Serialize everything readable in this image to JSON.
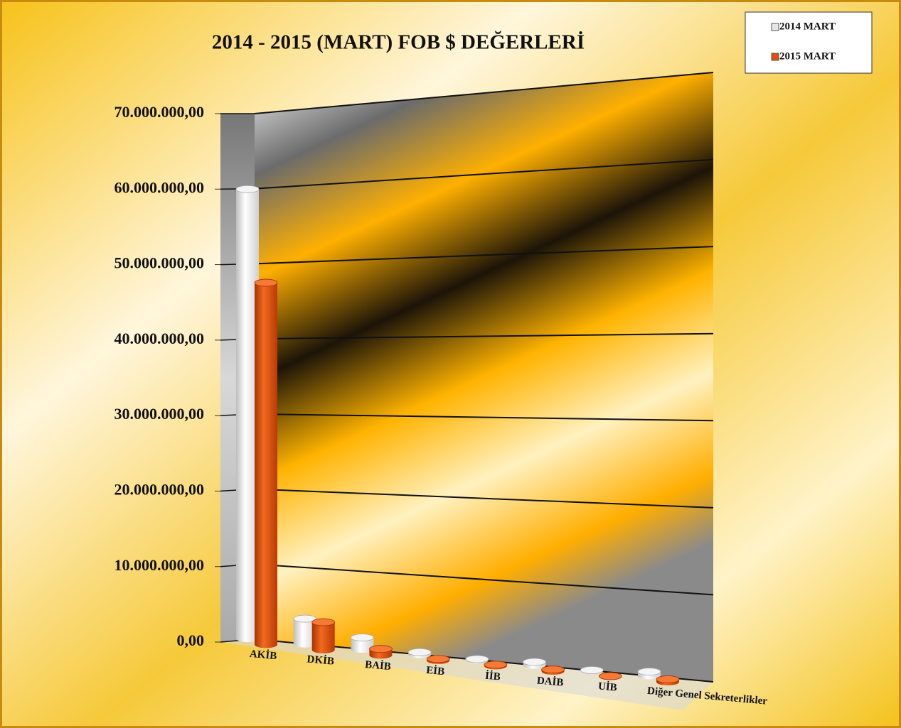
{
  "chart_data": {
    "type": "bar3d",
    "title": "2014 - 2015 (MART) FOB $ DEĞERLERİ",
    "categories": [
      "AKİB",
      "DKİB",
      "BAİB",
      "EİB",
      "İİB",
      "DAİB",
      "UİB",
      "Diğer Genel Sekreterlikler"
    ],
    "series": [
      {
        "name": "2014 MART",
        "color": "#e6e6e6",
        "values": [
          60000000,
          3300000,
          1500000,
          300000,
          100000,
          400000,
          50000,
          500000
        ]
      },
      {
        "name": "2015 MART",
        "color": "#e0500f",
        "values": [
          48000000,
          3600000,
          800000,
          200000,
          150000,
          200000,
          50000,
          300000
        ]
      }
    ],
    "ylim": [
      0,
      70000000
    ],
    "yticks": [
      {
        "value": 0,
        "label": "0,00"
      },
      {
        "value": 10000000,
        "label": "10.000.000,00"
      },
      {
        "value": 20000000,
        "label": "20.000.000,00"
      },
      {
        "value": 30000000,
        "label": "30.000.000,00"
      },
      {
        "value": 40000000,
        "label": "40.000.000,00"
      },
      {
        "value": 50000000,
        "label": "50.000.000,00"
      },
      {
        "value": 60000000,
        "label": "60.000.000,00"
      },
      {
        "value": 70000000,
        "label": "70.000.000,00"
      }
    ],
    "grid": true,
    "legend": "top-right"
  }
}
